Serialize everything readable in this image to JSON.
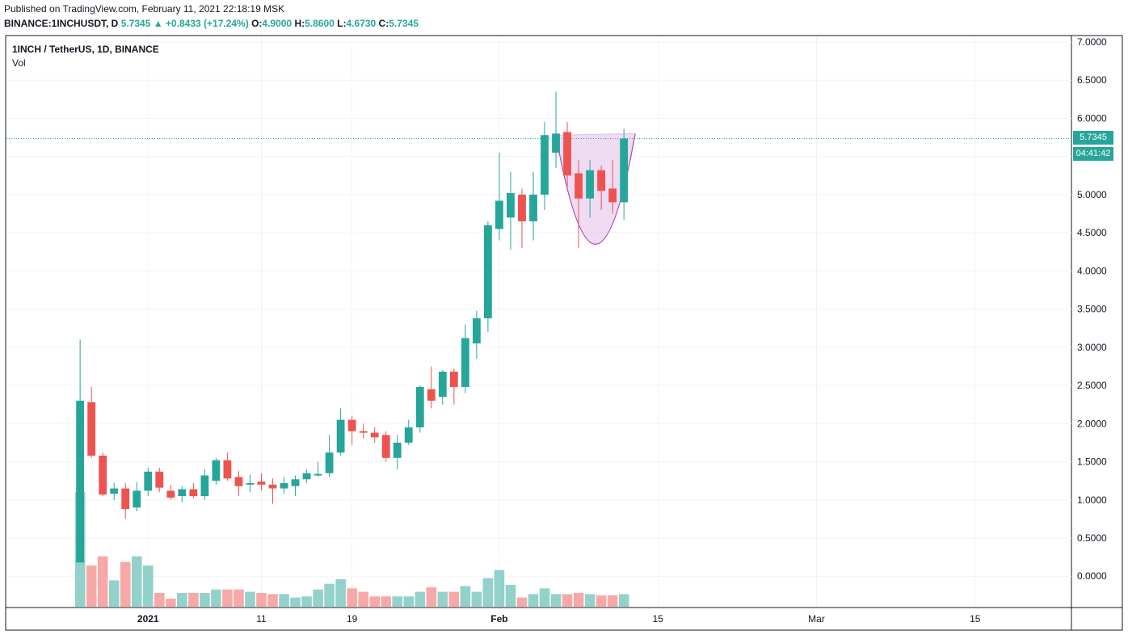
{
  "published": "Published on TradingView.com, February 11, 2021 22:18:19 MSK",
  "header": {
    "symbol": "BINANCE:1INCHUSDT, D",
    "last": "5.7345",
    "arrow": "▲",
    "change": "+0.8433 (+17.24%)",
    "o_label": "O:",
    "o": "4.9000",
    "h_label": "H:",
    "h": "5.8600",
    "l_label": "L:",
    "l": "4.6730",
    "c_label": "C:",
    "c": "5.7345"
  },
  "legend": {
    "title": "1INCH / TetherUS, 1D, BINANCE",
    "vol": "Vol"
  },
  "badges": {
    "price": "5.7345",
    "countdown": "04:41:42"
  },
  "colors": {
    "up": "#26a69a",
    "down": "#ef5350",
    "up_vol": "#93d2cb",
    "down_vol": "#f7a9a8",
    "pattern": "#ab47bc",
    "pattern_fill": "#e1bee7"
  },
  "chart_data": {
    "type": "candlestick",
    "title": "1INCH / TetherUS, 1D, BINANCE",
    "y_ticks": [
      "7.0000",
      "6.5000",
      "6.0000",
      "5.5000",
      "5.0000",
      "4.5000",
      "4.0000",
      "3.5000",
      "3.0000",
      "2.5000",
      "2.0000",
      "1.5000",
      "1.0000",
      "0.5000",
      "0.0000"
    ],
    "ylim": [
      -0.4,
      7.0
    ],
    "x_ticks": [
      "2021",
      "11",
      "19",
      "Feb",
      "15",
      "Mar",
      "15"
    ],
    "x_tick_days": [
      6,
      16,
      24,
      37,
      51,
      65,
      79
    ],
    "xlim": [
      -6.5,
      87.5
    ],
    "last_price": 5.7345,
    "candles": [
      {
        "o": 0.18,
        "h": 3.1,
        "l": 0.18,
        "c": 2.3
      },
      {
        "o": 2.28,
        "h": 2.48,
        "l": 1.55,
        "c": 1.58
      },
      {
        "o": 1.58,
        "h": 1.62,
        "l": 1.05,
        "c": 1.07
      },
      {
        "o": 1.08,
        "h": 1.22,
        "l": 1.0,
        "c": 1.15
      },
      {
        "o": 1.15,
        "h": 1.22,
        "l": 0.75,
        "c": 0.88
      },
      {
        "o": 0.9,
        "h": 1.23,
        "l": 0.85,
        "c": 1.12
      },
      {
        "o": 1.12,
        "h": 1.42,
        "l": 1.05,
        "c": 1.37
      },
      {
        "o": 1.37,
        "h": 1.42,
        "l": 1.1,
        "c": 1.16
      },
      {
        "o": 1.12,
        "h": 1.2,
        "l": 1.0,
        "c": 1.03
      },
      {
        "o": 1.05,
        "h": 1.18,
        "l": 0.97,
        "c": 1.14
      },
      {
        "o": 1.14,
        "h": 1.22,
        "l": 1.02,
        "c": 1.05
      },
      {
        "o": 1.05,
        "h": 1.4,
        "l": 1.0,
        "c": 1.32
      },
      {
        "o": 1.25,
        "h": 1.55,
        "l": 1.2,
        "c": 1.52
      },
      {
        "o": 1.52,
        "h": 1.62,
        "l": 1.25,
        "c": 1.28
      },
      {
        "o": 1.3,
        "h": 1.38,
        "l": 1.05,
        "c": 1.18
      },
      {
        "o": 1.2,
        "h": 1.33,
        "l": 1.1,
        "c": 1.22
      },
      {
        "o": 1.24,
        "h": 1.35,
        "l": 1.12,
        "c": 1.2
      },
      {
        "o": 1.2,
        "h": 1.28,
        "l": 0.95,
        "c": 1.15
      },
      {
        "o": 1.15,
        "h": 1.3,
        "l": 1.08,
        "c": 1.22
      },
      {
        "o": 1.18,
        "h": 1.32,
        "l": 1.05,
        "c": 1.27
      },
      {
        "o": 1.27,
        "h": 1.4,
        "l": 1.22,
        "c": 1.35
      },
      {
        "o": 1.32,
        "h": 1.5,
        "l": 1.3,
        "c": 1.34
      },
      {
        "o": 1.35,
        "h": 1.85,
        "l": 1.3,
        "c": 1.62
      },
      {
        "o": 1.62,
        "h": 2.2,
        "l": 1.58,
        "c": 2.05
      },
      {
        "o": 2.05,
        "h": 2.1,
        "l": 1.72,
        "c": 1.9
      },
      {
        "o": 1.9,
        "h": 2.0,
        "l": 1.8,
        "c": 1.88
      },
      {
        "o": 1.88,
        "h": 1.95,
        "l": 1.75,
        "c": 1.82
      },
      {
        "o": 1.85,
        "h": 1.9,
        "l": 1.5,
        "c": 1.55
      },
      {
        "o": 1.55,
        "h": 1.85,
        "l": 1.4,
        "c": 1.75
      },
      {
        "o": 1.75,
        "h": 2.05,
        "l": 1.72,
        "c": 1.95
      },
      {
        "o": 1.95,
        "h": 2.5,
        "l": 1.88,
        "c": 2.48
      },
      {
        "o": 2.45,
        "h": 2.75,
        "l": 2.2,
        "c": 2.3
      },
      {
        "o": 2.35,
        "h": 2.7,
        "l": 2.25,
        "c": 2.68
      },
      {
        "o": 2.68,
        "h": 2.72,
        "l": 2.25,
        "c": 2.48
      },
      {
        "o": 2.48,
        "h": 3.3,
        "l": 2.4,
        "c": 3.12
      },
      {
        "o": 3.05,
        "h": 3.48,
        "l": 2.85,
        "c": 3.38
      },
      {
        "o": 3.38,
        "h": 4.65,
        "l": 3.2,
        "c": 4.6
      },
      {
        "o": 4.55,
        "h": 5.55,
        "l": 4.4,
        "c": 4.92
      },
      {
        "o": 4.7,
        "h": 5.3,
        "l": 4.28,
        "c": 5.02
      },
      {
        "o": 5.0,
        "h": 5.08,
        "l": 4.3,
        "c": 4.65
      },
      {
        "o": 4.65,
        "h": 5.3,
        "l": 4.4,
        "c": 5.0
      },
      {
        "o": 5.0,
        "h": 5.95,
        "l": 4.8,
        "c": 5.78
      },
      {
        "o": 5.55,
        "h": 6.35,
        "l": 5.35,
        "c": 5.8
      },
      {
        "o": 5.82,
        "h": 5.95,
        "l": 5.1,
        "c": 5.25
      },
      {
        "o": 5.28,
        "h": 5.45,
        "l": 4.3,
        "c": 4.95
      },
      {
        "o": 4.95,
        "h": 5.45,
        "l": 4.7,
        "c": 5.32
      },
      {
        "o": 5.32,
        "h": 5.38,
        "l": 4.8,
        "c": 5.05
      },
      {
        "o": 5.08,
        "h": 5.45,
        "l": 4.75,
        "c": 4.9
      },
      {
        "o": 4.9,
        "h": 5.86,
        "l": 4.67,
        "c": 5.7345
      }
    ],
    "volume": [
      1.0,
      0.36,
      0.44,
      0.23,
      0.39,
      0.44,
      0.36,
      0.12,
      0.07,
      0.12,
      0.12,
      0.12,
      0.15,
      0.15,
      0.15,
      0.13,
      0.12,
      0.11,
      0.11,
      0.08,
      0.09,
      0.15,
      0.2,
      0.24,
      0.16,
      0.13,
      0.09,
      0.09,
      0.09,
      0.09,
      0.13,
      0.17,
      0.13,
      0.13,
      0.18,
      0.13,
      0.25,
      0.32,
      0.19,
      0.08,
      0.11,
      0.16,
      0.11,
      0.11,
      0.12,
      0.11,
      0.1,
      0.1,
      0.11
    ],
    "vol_ylim": [
      0,
      1.0
    ],
    "pattern": {
      "type": "cup",
      "rim_left": {
        "day": 42,
        "price": 5.78
      },
      "rim_right": {
        "day": 49,
        "price": 5.8
      },
      "bottom": {
        "day": 45.5,
        "price": 4.35
      }
    }
  }
}
